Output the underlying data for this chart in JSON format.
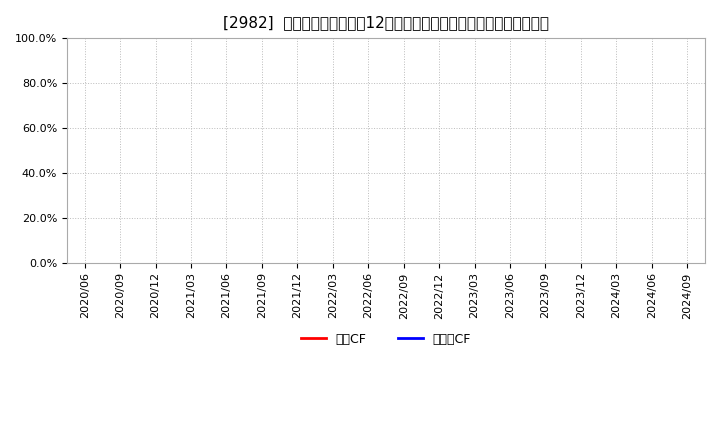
{
  "title": "[2982]  キャッシュフローの12か月移動合計の対前年同期増減率の推移",
  "ylim": [
    0.0,
    1.0
  ],
  "yticks": [
    0.0,
    0.2,
    0.4,
    0.6,
    0.8,
    1.0
  ],
  "ytick_labels": [
    "0.0%",
    "20.0%",
    "40.0%",
    "60.0%",
    "80.0%",
    "100.0%"
  ],
  "x_labels": [
    "2020/06",
    "2020/09",
    "2020/12",
    "2021/03",
    "2021/06",
    "2021/09",
    "2021/12",
    "2022/03",
    "2022/06",
    "2022/09",
    "2022/12",
    "2023/03",
    "2023/06",
    "2023/09",
    "2023/12",
    "2024/03",
    "2024/06",
    "2024/09"
  ],
  "legend_entries": [
    {
      "label": "営業CF",
      "color": "#ff0000",
      "linestyle": "-"
    },
    {
      "label": "フリーCF",
      "color": "#0000ff",
      "linestyle": "-"
    }
  ],
  "background_color": "#ffffff",
  "plot_background_color": "#ffffff",
  "grid_color": "#bbbbbb",
  "grid_linestyle": ":",
  "title_fontsize": 11,
  "tick_fontsize": 8,
  "legend_fontsize": 9,
  "series": [
    {
      "name": "営業CF",
      "color": "#ff0000",
      "values": []
    },
    {
      "name": "フリーCF",
      "color": "#0000ff",
      "values": []
    }
  ]
}
